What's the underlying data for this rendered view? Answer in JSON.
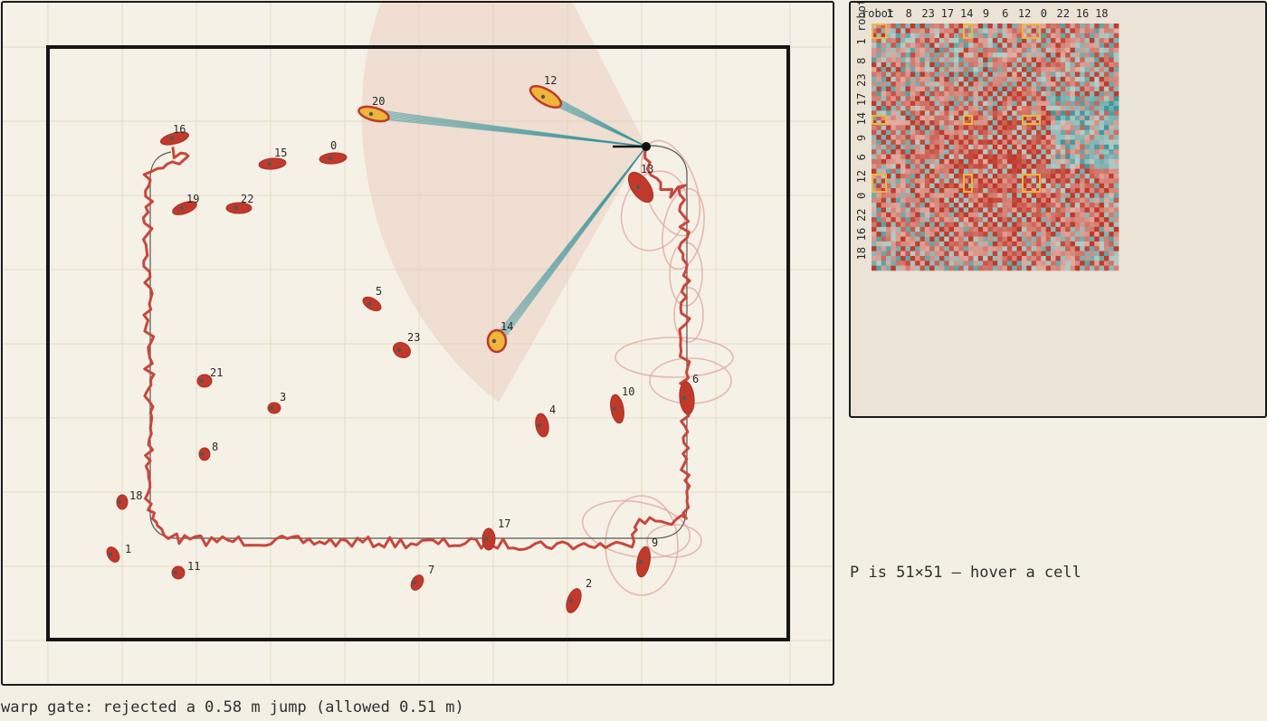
{
  "map": {
    "landmarks": [
      {
        "id": "0",
        "label": "0"
      },
      {
        "id": "1",
        "label": "1"
      },
      {
        "id": "2",
        "label": "2"
      },
      {
        "id": "3",
        "label": "3"
      },
      {
        "id": "4",
        "label": "4"
      },
      {
        "id": "5",
        "label": "5"
      },
      {
        "id": "6",
        "label": "6"
      },
      {
        "id": "7",
        "label": "7"
      },
      {
        "id": "8",
        "label": "8"
      },
      {
        "id": "9",
        "label": "9"
      },
      {
        "id": "10",
        "label": "10"
      },
      {
        "id": "11",
        "label": "11"
      },
      {
        "id": "12",
        "label": "12",
        "observed": true
      },
      {
        "id": "13",
        "label": "13"
      },
      {
        "id": "14",
        "label": "14",
        "observed": true
      },
      {
        "id": "15",
        "label": "15"
      },
      {
        "id": "16",
        "label": "16"
      },
      {
        "id": "17",
        "label": "17"
      },
      {
        "id": "18",
        "label": "18"
      },
      {
        "id": "19",
        "label": "19"
      },
      {
        "id": "20",
        "label": "20",
        "observed": true
      },
      {
        "id": "21",
        "label": "21"
      },
      {
        "id": "22",
        "label": "22"
      },
      {
        "id": "23",
        "label": "23"
      }
    ],
    "colors": {
      "landmark": "#c0392b",
      "observed": "#f0b63a",
      "trajectory": "#c8473c",
      "ray": "#2f8f9a",
      "fov": "#e8c8b8",
      "grid": "#e4dcc6",
      "wall": "#151515"
    }
  },
  "matrix": {
    "title": "P",
    "corner_label": "robot",
    "column_labels": [
      "1",
      "8",
      "23",
      "17",
      "14",
      "9",
      "6",
      "12",
      "0",
      "22",
      "16",
      "18"
    ],
    "row_labels": [
      "1",
      "8",
      "23",
      "17",
      "14",
      "9",
      "6",
      "12",
      "0",
      "22",
      "16",
      "18"
    ],
    "size": 51,
    "status": "P is 51×51 — hover a cell",
    "colors": {
      "positive": "#c0392b",
      "negative": "#3a9aa0",
      "highlight": "#f0b63a"
    }
  },
  "status": {
    "gate": "warp gate: rejected a 0.58 m jump (allowed 0.51 m)"
  }
}
